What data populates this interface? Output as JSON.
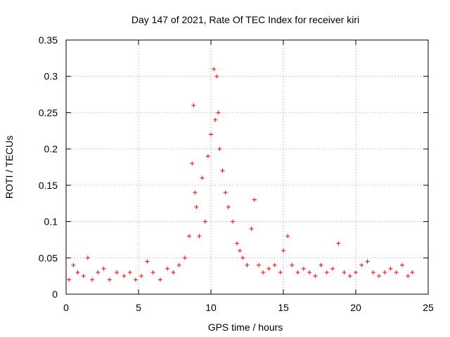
{
  "chart_data": {
    "type": "scatter",
    "title": "Day 147 of 2021, Rate Of TEC Index for receiver kiri",
    "xlabel": "GPS time / hours",
    "ylabel": "ROTI / TECUs",
    "xlim": [
      0,
      25
    ],
    "ylim": [
      0,
      0.35
    ],
    "xticks": [
      0,
      5,
      10,
      15,
      20,
      25
    ],
    "xtick_labels": [
      "0",
      "5",
      "10",
      "15",
      "20",
      "25"
    ],
    "yticks": [
      0,
      0.05,
      0.1,
      0.15,
      0.2,
      0.25,
      0.3,
      0.35
    ],
    "ytick_labels": [
      "0",
      "0.05",
      "0.1",
      "0.15",
      "0.2",
      "0.25",
      "0.3",
      "0.35"
    ],
    "grid": true,
    "marker": "+",
    "series": [
      {
        "name": "ROTI",
        "color": "#ff0000",
        "x": [
          0.2,
          0.5,
          0.8,
          1.2,
          1.5,
          1.8,
          2.2,
          2.6,
          3.0,
          3.5,
          4.0,
          4.4,
          4.8,
          5.2,
          5.6,
          6.0,
          6.5,
          7.0,
          7.4,
          7.8,
          8.2,
          8.5,
          8.7,
          8.8,
          8.9,
          9.0,
          9.2,
          9.4,
          9.6,
          9.8,
          10.0,
          10.2,
          10.3,
          10.4,
          10.5,
          10.6,
          10.8,
          11.0,
          11.2,
          11.5,
          11.8,
          12.0,
          12.2,
          12.5,
          12.8,
          13.0,
          13.3,
          13.6,
          14.0,
          14.4,
          14.8,
          15.0,
          15.3,
          15.6,
          16.0,
          16.4,
          16.8,
          17.2,
          17.6,
          18.0,
          18.4,
          18.8,
          19.2,
          19.6,
          20.0,
          20.4,
          20.8,
          21.2,
          21.6,
          22.0,
          22.4,
          22.8,
          23.2,
          23.6,
          23.9
        ],
        "y": [
          0.02,
          0.04,
          0.03,
          0.025,
          0.05,
          0.02,
          0.03,
          0.035,
          0.02,
          0.03,
          0.025,
          0.03,
          0.02,
          0.025,
          0.045,
          0.03,
          0.02,
          0.035,
          0.03,
          0.04,
          0.05,
          0.08,
          0.18,
          0.26,
          0.14,
          0.12,
          0.08,
          0.16,
          0.1,
          0.19,
          0.22,
          0.31,
          0.24,
          0.3,
          0.25,
          0.2,
          0.17,
          0.14,
          0.12,
          0.1,
          0.07,
          0.06,
          0.05,
          0.04,
          0.09,
          0.13,
          0.04,
          0.03,
          0.035,
          0.04,
          0.03,
          0.06,
          0.08,
          0.04,
          0.03,
          0.035,
          0.03,
          0.025,
          0.04,
          0.03,
          0.035,
          0.07,
          0.03,
          0.025,
          0.03,
          0.04,
          0.045,
          0.03,
          0.025,
          0.03,
          0.035,
          0.03,
          0.04,
          0.025,
          0.03
        ]
      }
    ]
  }
}
